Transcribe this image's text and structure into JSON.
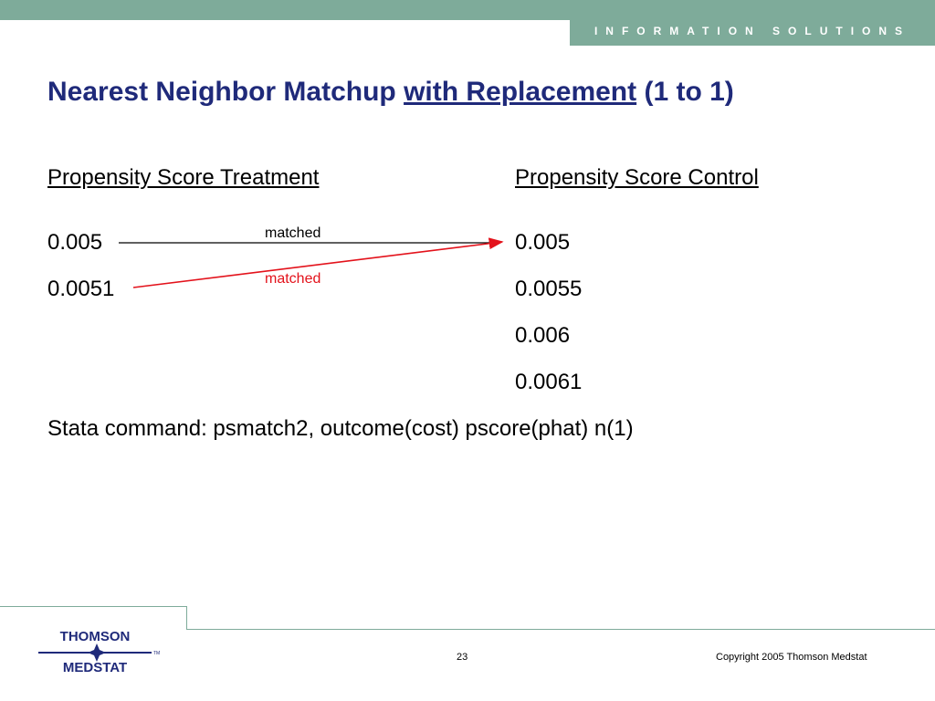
{
  "header": {
    "tagline": "INFORMATION SOLUTIONS"
  },
  "slide": {
    "title_part1": "Nearest Neighbor Matchup ",
    "title_underlined": "with Replacement",
    "title_part2": " (1 to 1)",
    "treatment_header": "Propensity Score Treatment",
    "control_header": "Propensity Score Control",
    "treatment_values": [
      "0.005",
      "0.0051"
    ],
    "control_values": [
      "0.005",
      "0.0055",
      "0.006",
      "0.0061"
    ],
    "match_labels": [
      "matched",
      "matched"
    ],
    "stata_command": "Stata command: psmatch2, outcome(cost) pscore(phat) n(1)"
  },
  "colors": {
    "accent": "#7eab9a",
    "title": "#1f2a7a",
    "match_line_black": "#000000",
    "match_line_red": "#e3121b"
  },
  "footer": {
    "logo_top": "THOMSON",
    "logo_bottom": "MEDSTAT",
    "logo_mark": "TM",
    "page_number": "23",
    "copyright": "Copyright 2005 Thomson Medstat"
  }
}
